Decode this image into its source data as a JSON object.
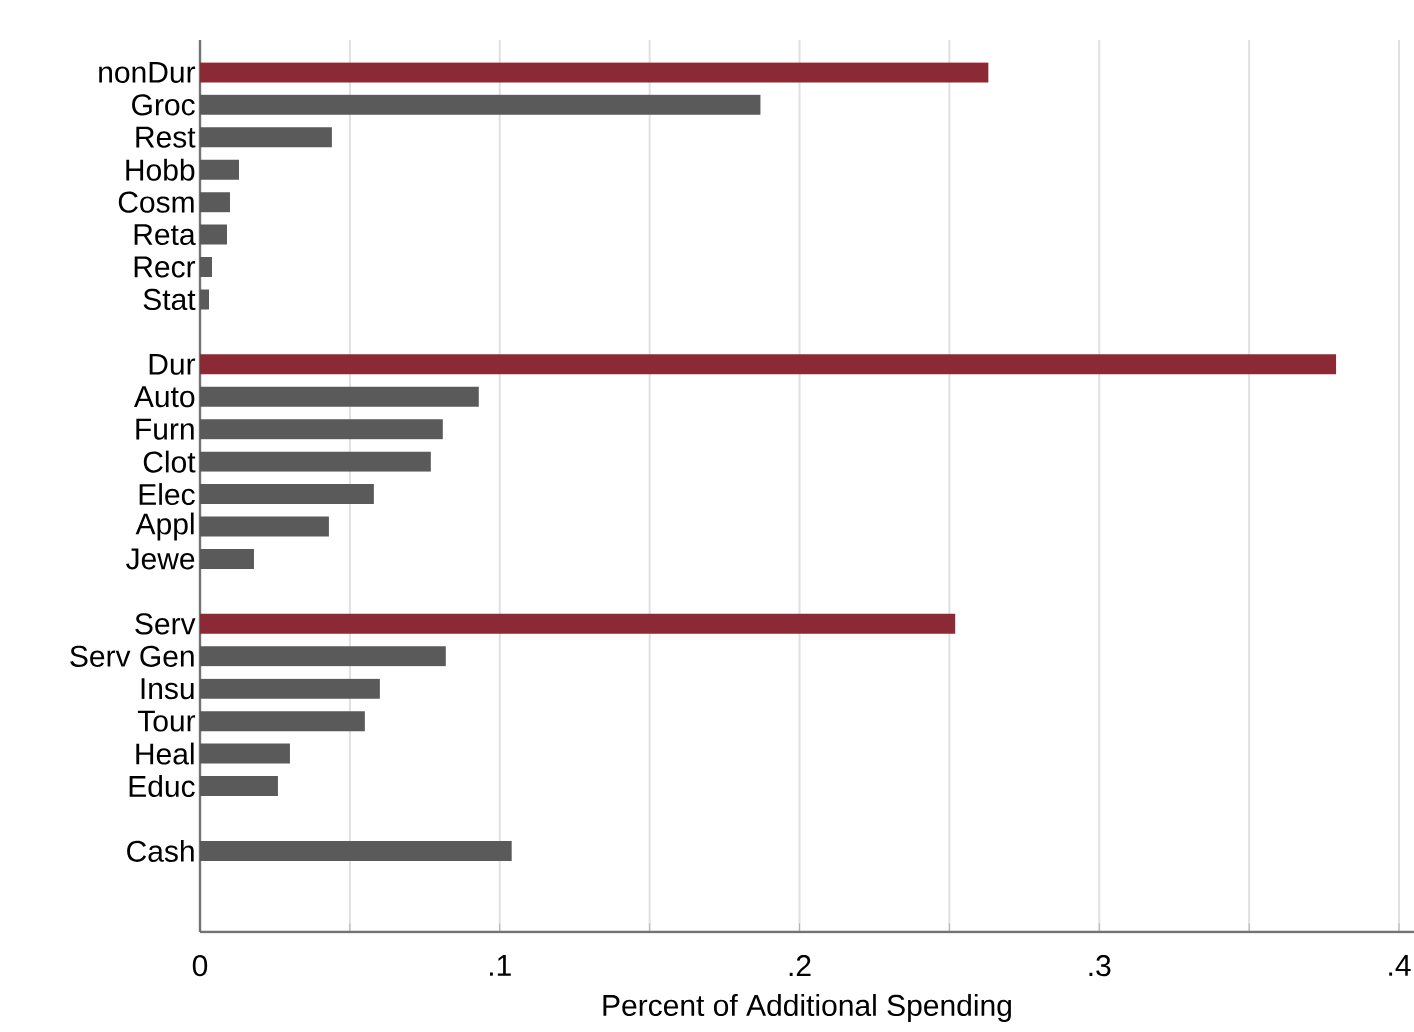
{
  "chart_data": {
    "type": "bar",
    "orientation": "horizontal",
    "xlabel": "Percent of Additional Spending",
    "categories": [
      "nonDur",
      "Groc",
      "Rest",
      "Hobb",
      "Cosm",
      "Reta",
      "Recr",
      "Stat",
      null,
      "Dur",
      "Auto",
      "Furn",
      "Clot",
      "Elec",
      "Appl",
      "Jewe",
      null,
      "Serv",
      "Serv Gen",
      "Insu",
      "Tour",
      "Heal",
      "Educ",
      null,
      "Cash"
    ],
    "values": [
      0.263,
      0.187,
      0.044,
      0.013,
      0.01,
      0.009,
      0.004,
      0.003,
      null,
      0.379,
      0.093,
      0.081,
      0.077,
      0.058,
      0.043,
      0.018,
      null,
      0.252,
      0.082,
      0.06,
      0.055,
      0.03,
      0.026,
      null,
      0.104
    ],
    "colors": [
      "#8b2a35",
      "#5a5a5a",
      "#5a5a5a",
      "#5a5a5a",
      "#5a5a5a",
      "#5a5a5a",
      "#5a5a5a",
      "#5a5a5a",
      "#5a5a5a",
      "#8b2a35",
      "#5a5a5a",
      "#5a5a5a",
      "#5a5a5a",
      "#5a5a5a",
      "#5a5a5a",
      "#5a5a5a",
      "#5a5a5a",
      "#8b2a35",
      "#5a5a5a",
      "#5a5a5a",
      "#5a5a5a",
      "#5a5a5a",
      "#5a5a5a",
      "#5a5a5a",
      "#5a5a5a"
    ],
    "xlim": [
      0,
      0.405
    ],
    "xticks": [
      {
        "value": 0,
        "label": "0"
      },
      {
        "value": 0.05,
        "label": null
      },
      {
        "value": 0.1,
        "label": ".1"
      },
      {
        "value": 0.15,
        "label": null
      },
      {
        "value": 0.2,
        "label": ".2"
      },
      {
        "value": 0.25,
        "label": null
      },
      {
        "value": 0.3,
        "label": ".3"
      },
      {
        "value": 0.35,
        "label": null
      },
      {
        "value": 0.4,
        "label": ".4"
      }
    ],
    "grid": "x"
  }
}
